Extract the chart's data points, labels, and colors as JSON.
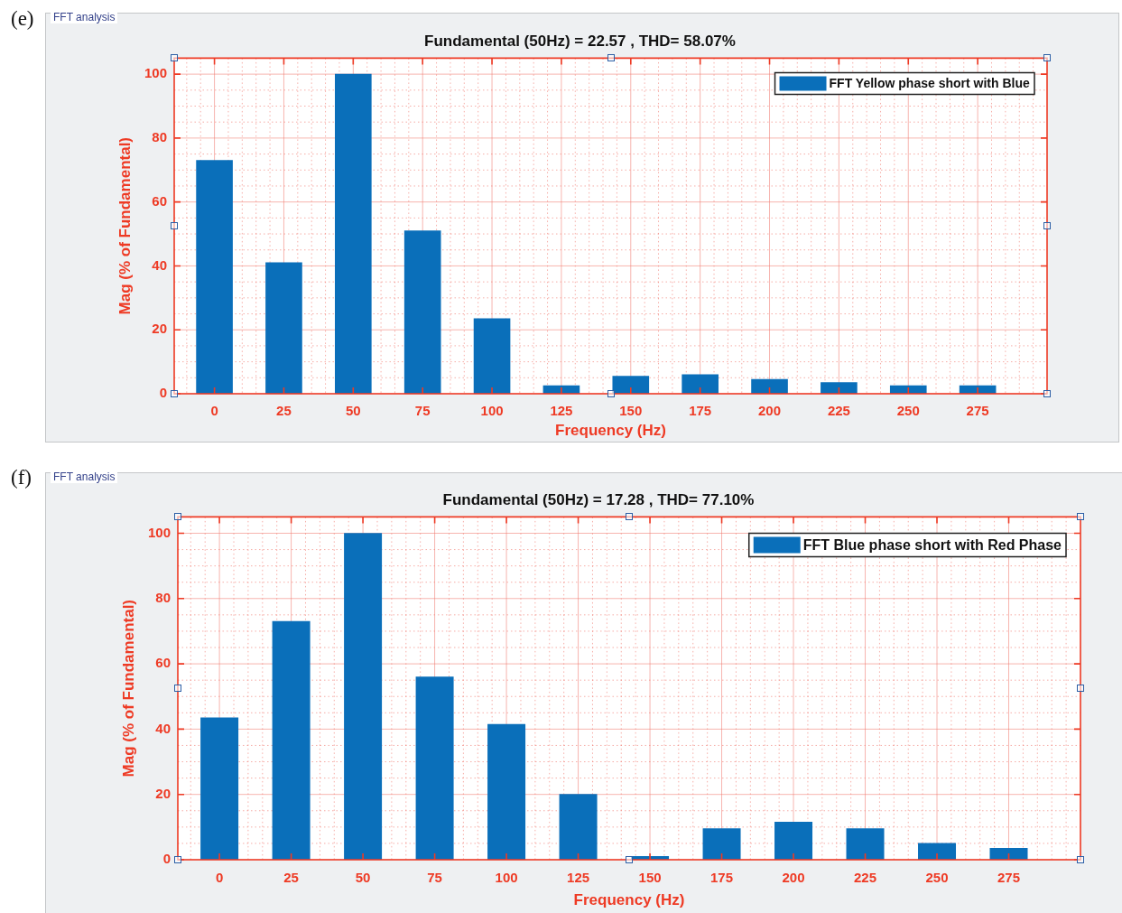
{
  "chart_data": [
    {
      "type": "bar",
      "title": "Fundamental (50Hz) = 22.57 , THD= 58.07%",
      "xlabel": "Frequency (Hz)",
      "ylabel": "Mag (% of Fundamental)",
      "annotations": [
        "(e)",
        "FFT analysis"
      ],
      "x": [
        0,
        25,
        50,
        75,
        100,
        125,
        150,
        175,
        200,
        225,
        250,
        275
      ],
      "series": [
        {
          "name": "FFT Yellow phase short with Blue",
          "color": "#0a6fba",
          "values": [
            73,
            41,
            100,
            51,
            23.5,
            2.5,
            5.5,
            6,
            4.5,
            3.5,
            2.5,
            2.5
          ]
        }
      ],
      "xlim": [
        -14.5,
        300
      ],
      "xticks": [
        {
          "value": -10,
          "label": null
        },
        {
          "value": -5,
          "label": null
        },
        0,
        {
          "value": 5,
          "label": null
        },
        {
          "value": 10,
          "label": null
        },
        {
          "value": 15,
          "label": null
        },
        {
          "value": 20,
          "label": null
        },
        25,
        {
          "value": 30,
          "label": null
        },
        {
          "value": 35,
          "label": null
        },
        {
          "value": 40,
          "label": null
        },
        {
          "value": 45,
          "label": null
        },
        50,
        {
          "value": 55,
          "label": null
        },
        {
          "value": 60,
          "label": null
        },
        {
          "value": 65,
          "label": null
        },
        {
          "value": 70,
          "label": null
        },
        75,
        {
          "value": 80,
          "label": null
        },
        {
          "value": 85,
          "label": null
        },
        {
          "value": 90,
          "label": null
        },
        {
          "value": 95,
          "label": null
        },
        100,
        {
          "value": 105,
          "label": null
        },
        {
          "value": 110,
          "label": null
        },
        {
          "value": 115,
          "label": null
        },
        {
          "value": 120,
          "label": null
        },
        125,
        {
          "value": 130,
          "label": null
        },
        {
          "value": 135,
          "label": null
        },
        {
          "value": 140,
          "label": null
        },
        {
          "value": 145,
          "label": null
        },
        150,
        {
          "value": 155,
          "label": null
        },
        {
          "value": 160,
          "label": null
        },
        {
          "value": 165,
          "label": null
        },
        {
          "value": 170,
          "label": null
        },
        175,
        {
          "value": 180,
          "label": null
        },
        {
          "value": 185,
          "label": null
        },
        {
          "value": 190,
          "label": null
        },
        {
          "value": 195,
          "label": null
        },
        200,
        {
          "value": 205,
          "label": null
        },
        {
          "value": 210,
          "label": null
        },
        {
          "value": 215,
          "label": null
        },
        {
          "value": 220,
          "label": null
        },
        225,
        {
          "value": 230,
          "label": null
        },
        {
          "value": 235,
          "label": null
        },
        {
          "value": 240,
          "label": null
        },
        {
          "value": 245,
          "label": null
        },
        250,
        {
          "value": 255,
          "label": null
        },
        {
          "value": 260,
          "label": null
        },
        {
          "value": 265,
          "label": null
        },
        {
          "value": 270,
          "label": null
        },
        275,
        {
          "value": 280,
          "label": null
        },
        {
          "value": 285,
          "label": null
        },
        {
          "value": 290,
          "label": null
        },
        {
          "value": 295,
          "label": null
        }
      ],
      "ylim": [
        0,
        105
      ],
      "yticks": [
        0,
        {
          "value": 5,
          "label": null
        },
        {
          "value": 10,
          "label": null
        },
        {
          "value": 15,
          "label": null
        },
        20,
        {
          "value": 25,
          "label": null
        },
        {
          "value": 30,
          "label": null
        },
        {
          "value": 35,
          "label": null
        },
        40,
        {
          "value": 45,
          "label": null
        },
        {
          "value": 50,
          "label": null
        },
        {
          "value": 55,
          "label": null
        },
        60,
        {
          "value": 65,
          "label": null
        },
        {
          "value": 70,
          "label": null
        },
        {
          "value": 75,
          "label": null
        },
        80,
        {
          "value": 85,
          "label": null
        },
        {
          "value": 90,
          "label": null
        },
        {
          "value": 95,
          "label": null
        },
        100
      ],
      "grid": true,
      "legend": "top right"
    },
    {
      "type": "bar",
      "title": "Fundamental (50Hz) = 17.28 , THD= 77.10%",
      "xlabel": "Frequency (Hz)",
      "ylabel": "Mag (% of Fundamental)",
      "annotations": [
        "(f)",
        "FFT analysis"
      ],
      "x": [
        0,
        25,
        50,
        75,
        100,
        125,
        150,
        175,
        200,
        225,
        250,
        275
      ],
      "series": [
        {
          "name": "FFT Blue phase short with Red Phase",
          "color": "#0a6fba",
          "values": [
            43.5,
            73,
            100,
            56,
            41.5,
            20,
            1,
            9.5,
            11.5,
            9.5,
            5,
            3.5
          ]
        }
      ],
      "xlim": [
        -14.5,
        300
      ],
      "xticks": [
        {
          "value": -10,
          "label": null
        },
        {
          "value": -5,
          "label": null
        },
        0,
        {
          "value": 5,
          "label": null
        },
        {
          "value": 10,
          "label": null
        },
        {
          "value": 15,
          "label": null
        },
        {
          "value": 20,
          "label": null
        },
        25,
        {
          "value": 30,
          "label": null
        },
        {
          "value": 35,
          "label": null
        },
        {
          "value": 40,
          "label": null
        },
        {
          "value": 45,
          "label": null
        },
        50,
        {
          "value": 55,
          "label": null
        },
        {
          "value": 60,
          "label": null
        },
        {
          "value": 65,
          "label": null
        },
        {
          "value": 70,
          "label": null
        },
        75,
        {
          "value": 80,
          "label": null
        },
        {
          "value": 85,
          "label": null
        },
        {
          "value": 90,
          "label": null
        },
        {
          "value": 95,
          "label": null
        },
        100,
        {
          "value": 105,
          "label": null
        },
        {
          "value": 110,
          "label": null
        },
        {
          "value": 115,
          "label": null
        },
        {
          "value": 120,
          "label": null
        },
        125,
        {
          "value": 130,
          "label": null
        },
        {
          "value": 135,
          "label": null
        },
        {
          "value": 140,
          "label": null
        },
        {
          "value": 145,
          "label": null
        },
        150,
        {
          "value": 155,
          "label": null
        },
        {
          "value": 160,
          "label": null
        },
        {
          "value": 165,
          "label": null
        },
        {
          "value": 170,
          "label": null
        },
        175,
        {
          "value": 180,
          "label": null
        },
        {
          "value": 185,
          "label": null
        },
        {
          "value": 190,
          "label": null
        },
        {
          "value": 195,
          "label": null
        },
        200,
        {
          "value": 205,
          "label": null
        },
        {
          "value": 210,
          "label": null
        },
        {
          "value": 215,
          "label": null
        },
        {
          "value": 220,
          "label": null
        },
        225,
        {
          "value": 230,
          "label": null
        },
        {
          "value": 235,
          "label": null
        },
        {
          "value": 240,
          "label": null
        },
        {
          "value": 245,
          "label": null
        },
        250,
        {
          "value": 255,
          "label": null
        },
        {
          "value": 260,
          "label": null
        },
        {
          "value": 265,
          "label": null
        },
        {
          "value": 270,
          "label": null
        },
        275,
        {
          "value": 280,
          "label": null
        },
        {
          "value": 285,
          "label": null
        },
        {
          "value": 290,
          "label": null
        },
        {
          "value": 295,
          "label": null
        }
      ],
      "ylim": [
        0,
        105
      ],
      "yticks": [
        0,
        {
          "value": 5,
          "label": null
        },
        {
          "value": 10,
          "label": null
        },
        {
          "value": 15,
          "label": null
        },
        20,
        {
          "value": 25,
          "label": null
        },
        {
          "value": 30,
          "label": null
        },
        {
          "value": 35,
          "label": null
        },
        40,
        {
          "value": 45,
          "label": null
        },
        {
          "value": 50,
          "label": null
        },
        {
          "value": 55,
          "label": null
        },
        60,
        {
          "value": 65,
          "label": null
        },
        {
          "value": 70,
          "label": null
        },
        {
          "value": 75,
          "label": null
        },
        80,
        {
          "value": 85,
          "label": null
        },
        {
          "value": 90,
          "label": null
        },
        {
          "value": 95,
          "label": null
        },
        100
      ],
      "grid": true,
      "legend": "top right"
    }
  ]
}
